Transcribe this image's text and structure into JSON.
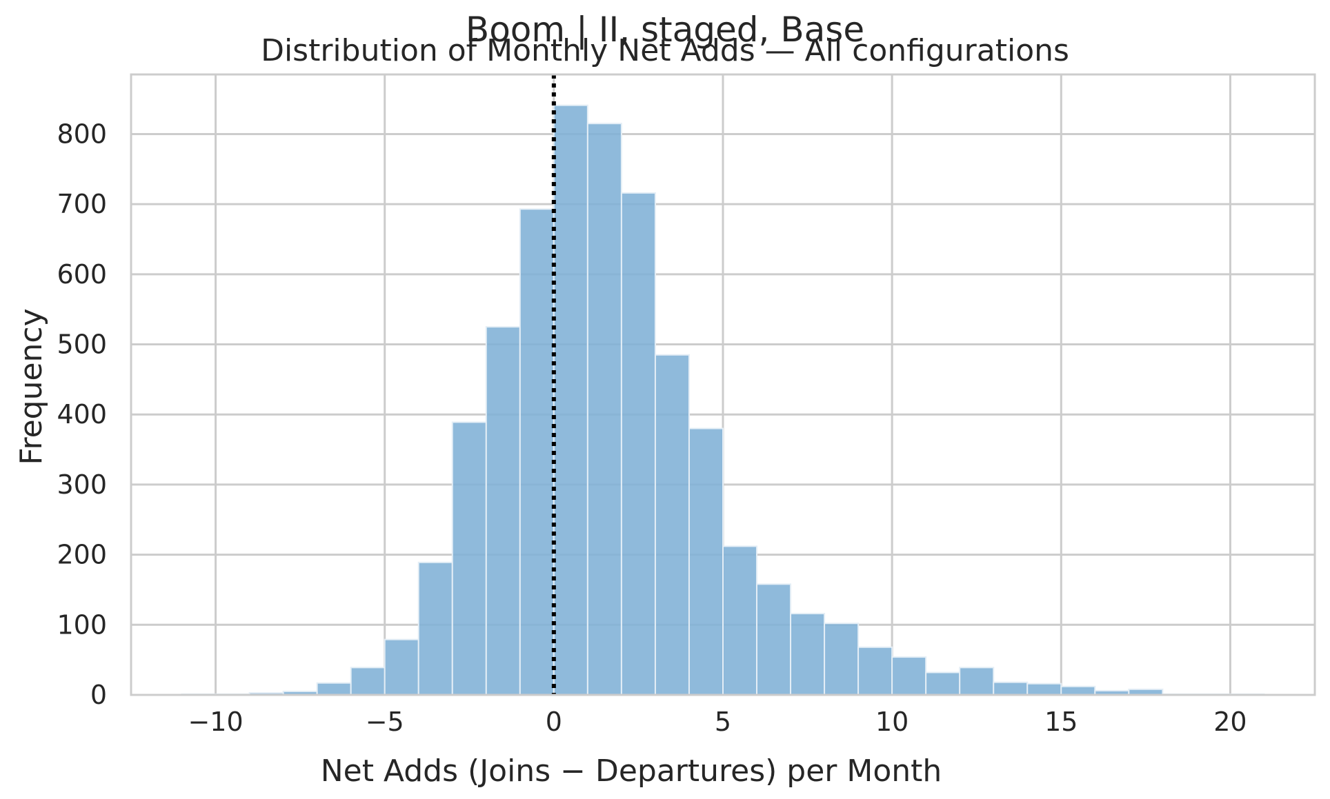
{
  "chart_data": {
    "type": "bar",
    "suptitle": "Boom | II, staged, Base",
    "title": "Distribution of Monthly Net Adds — All configurations",
    "xlabel": "Net Adds (Joins − Departures) per Month",
    "ylabel": "Frequency",
    "xlim": [
      -12.5,
      22.5
    ],
    "ylim": [
      0,
      885
    ],
    "xticks": [
      -10,
      -5,
      0,
      5,
      10,
      15,
      20
    ],
    "xtick_labels": [
      "−10",
      "−5",
      "0",
      "5",
      "10",
      "15",
      "20"
    ],
    "yticks": [
      0,
      100,
      200,
      300,
      400,
      500,
      600,
      700,
      800
    ],
    "ytick_labels": [
      "0",
      "100",
      "200",
      "300",
      "400",
      "500",
      "600",
      "700",
      "800"
    ],
    "grid": true,
    "bin_width": 1,
    "bin_starts": [
      -11,
      -10,
      -9,
      -8,
      -7,
      -6,
      -5,
      -4,
      -3,
      -2,
      -1,
      0,
      1,
      2,
      3,
      4,
      5,
      6,
      7,
      8,
      9,
      10,
      11,
      12,
      13,
      14,
      15,
      16,
      17,
      18,
      19,
      20
    ],
    "values": [
      1,
      1,
      3,
      5,
      17,
      39,
      79,
      189,
      389,
      525,
      693,
      841,
      815,
      716,
      485,
      380,
      212,
      158,
      116,
      102,
      68,
      54,
      32,
      39,
      18,
      16,
      12,
      6,
      8,
      1,
      1,
      1
    ],
    "reference_line": {
      "x": 0,
      "style": "dotted",
      "color": "#000000"
    },
    "bar_color": "#7fb0d6"
  }
}
